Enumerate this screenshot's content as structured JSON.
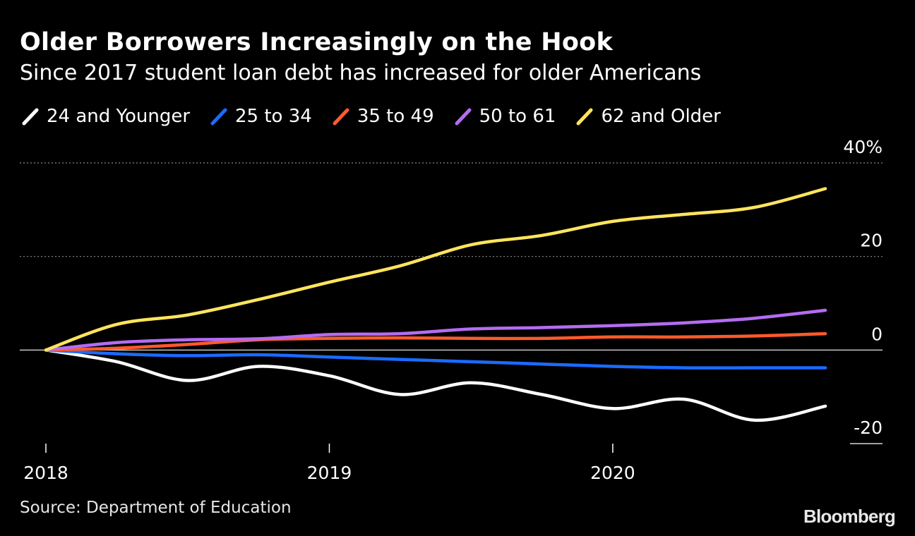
{
  "header": {
    "title": "Older Borrowers Increasingly on the Hook",
    "subtitle": "Since 2017 student loan debt has increased for older Americans"
  },
  "footer": {
    "source": "Source: Department of Education",
    "logo": "Bloomberg"
  },
  "chart_data": {
    "type": "line",
    "title": "Older Borrowers Increasingly on the Hook",
    "subtitle": "Since 2017 student loan debt has increased for older Americans",
    "x": [
      "2018-Q1",
      "2018-Q2",
      "2018-Q3",
      "2018-Q4",
      "2019-Q1",
      "2019-Q2",
      "2019-Q3",
      "2019-Q4",
      "2020-Q1",
      "2020-Q2",
      "2020-Q3",
      "2020-Q4"
    ],
    "x_ticks": [
      "2018",
      "2019",
      "2020"
    ],
    "y_ticks": [
      40,
      20,
      0,
      -20
    ],
    "y_tick_labels": [
      "40%",
      "20",
      "0",
      "-20"
    ],
    "ylim": [
      -20,
      40
    ],
    "grid": "horizontal dotted",
    "legend_position": "top",
    "series": [
      {
        "name": "24 and Younger",
        "color": "#ffffff",
        "values": [
          0,
          -2.5,
          -6.5,
          -3.5,
          -5.5,
          -9.5,
          -7,
          -9.5,
          -12.5,
          -10.5,
          -15,
          -12
        ]
      },
      {
        "name": "25 to 34",
        "color": "#1a6bff",
        "values": [
          0,
          -0.8,
          -1.2,
          -1.0,
          -1.5,
          -2.0,
          -2.5,
          -3.0,
          -3.5,
          -3.8,
          -3.8,
          -3.8
        ]
      },
      {
        "name": "35 to 49",
        "color": "#ff5a2b",
        "values": [
          0,
          0.4,
          1.2,
          2.2,
          2.5,
          2.6,
          2.5,
          2.5,
          2.8,
          2.8,
          3.0,
          3.5
        ]
      },
      {
        "name": "50 to 61",
        "color": "#b46cf2",
        "values": [
          0,
          1.6,
          2.2,
          2.4,
          3.3,
          3.5,
          4.5,
          4.8,
          5.2,
          5.8,
          6.8,
          8.5
        ]
      },
      {
        "name": "62 and Older",
        "color": "#ffe45e",
        "values": [
          0,
          5.5,
          7.5,
          10.8,
          14.5,
          18.0,
          22.5,
          24.5,
          27.5,
          29.0,
          30.5,
          34.5
        ]
      }
    ]
  }
}
